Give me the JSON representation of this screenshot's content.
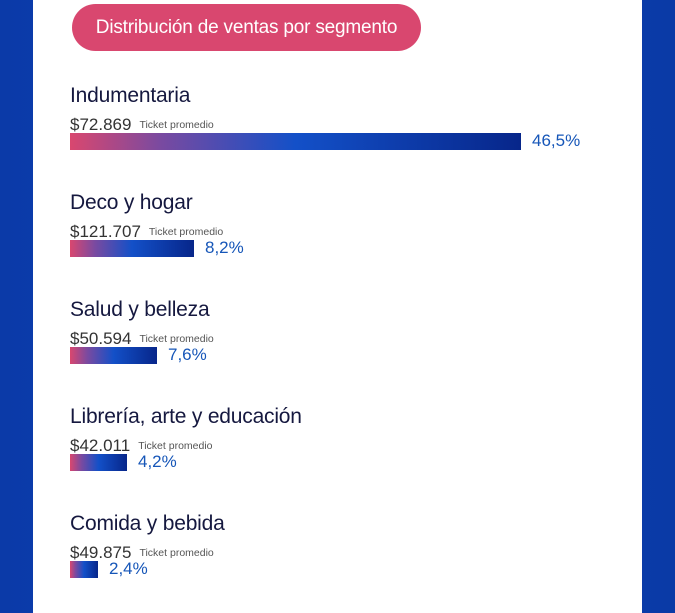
{
  "chart_data": {
    "type": "bar",
    "title": "Distribución de ventas por segmento",
    "categories": [
      "Indumentaria",
      "Deco y hogar",
      "Salud y belleza",
      "Librería, arte y educación",
      "Comida y bebida"
    ],
    "values": [
      46.5,
      8.2,
      7.6,
      4.2,
      2.4
    ],
    "value_labels": [
      "46,5%",
      "8,2%",
      "7,6%",
      "4,2%",
      "2,4%"
    ],
    "ticket_prices": [
      "$72.869",
      "$121.707",
      "$50.594",
      "$42.011",
      "$49.875"
    ],
    "ticket_label": "Ticket promedio",
    "unit": "%"
  },
  "colors": {
    "pill": "#d9476f",
    "bar_start": "#d9476f",
    "bar_end": "#07268a",
    "background": "#0a3bb0"
  }
}
